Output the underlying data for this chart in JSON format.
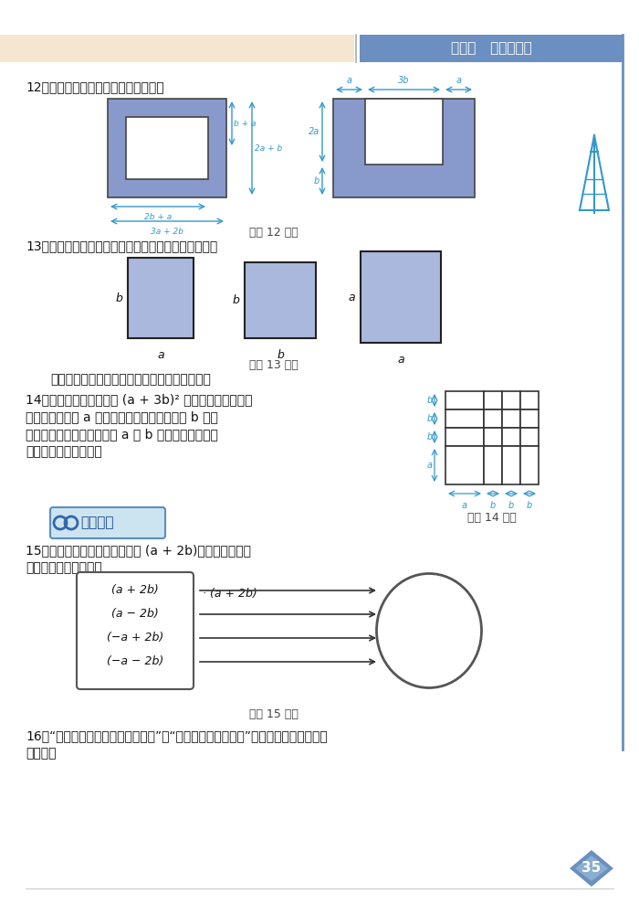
{
  "title_bar_text": "第一章   整式的乘除",
  "title_bar_color": "#6a8fc0",
  "title_bar_text_color": "#ffffff",
  "page_bg": "#ffffff",
  "q12_text": "12．分别计算下图中阴影部分的面积．",
  "q13_text": "13．请分别准备几张如图所示的长方形或正方形卡片．",
  "q13_sub": "用它们拼一些新的长方形，并计算它们的面积．",
  "q14_text1": "14．请在图中指出面积为 (a + 3b)² 的图形，并指出图中",
  "q14_text2": "有多少个边长为 a 的正方形，有多少个边长为 b 的正",
  "q14_text3": "方形，有多少个两边分别为 a 和 b 的长方形，然后用",
  "q14_text4": "相应的公式进行验证．",
  "q15_section_text": "联系拓广",
  "q15_text1": "15．把下图左框里的整式分别乘 (a + 2b)，将所得的积写",
  "q15_text2": "在右框相应的位置上．",
  "q15_caption": "（第 15 题）",
  "q14_caption": "（第 14 题）",
  "q12_caption": "（第 12 题）",
  "q13_caption": "（第 13 题）",
  "q16_line1": "16．“两个相邻整数的平均数的平方”与“它们平方数的平均数”相等吗？若不相等，相",
  "q16_line2": "差多少？",
  "page_number": "35",
  "shape_fill": "#8899cc",
  "shape_fill2": "#aab8dd",
  "dim_color": "#3399cc",
  "grid_color": "#333333"
}
